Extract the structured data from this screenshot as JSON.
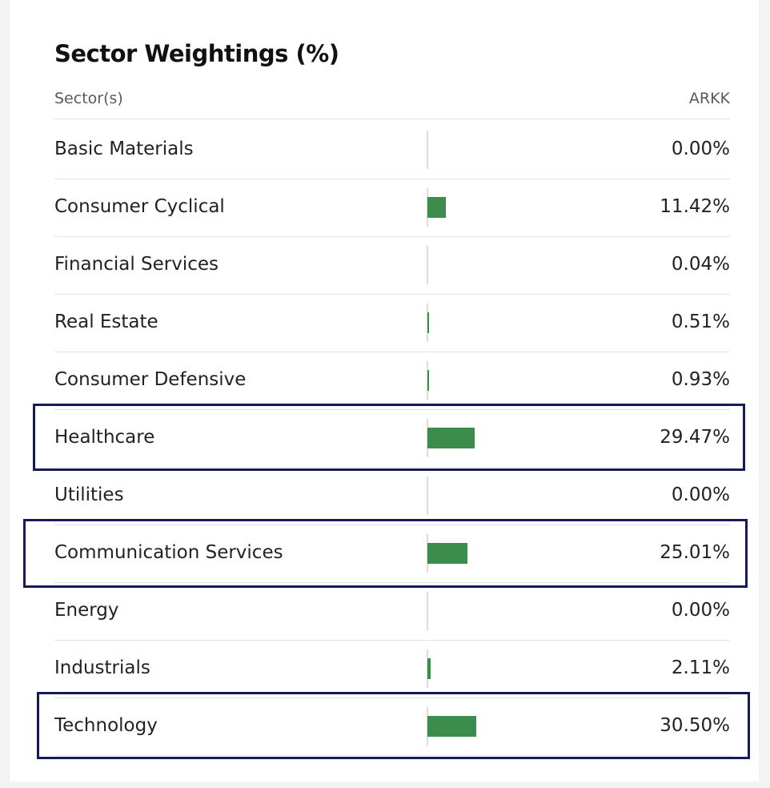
{
  "chart_data": {
    "type": "table",
    "title": "Sector Weightings (%)",
    "columns": [
      "Sector(s)",
      "ARKK"
    ],
    "categories": [
      "Basic Materials",
      "Consumer Cyclical",
      "Financial Services",
      "Real Estate",
      "Consumer Defensive",
      "Healthcare",
      "Utilities",
      "Communication Services",
      "Energy",
      "Industrials",
      "Technology"
    ],
    "values": [
      0.0,
      11.42,
      0.04,
      0.51,
      0.93,
      29.47,
      0.0,
      25.01,
      0.0,
      2.11,
      30.5
    ],
    "value_labels": [
      "0.00%",
      "11.42%",
      "0.04%",
      "0.51%",
      "0.93%",
      "29.47%",
      "0.00%",
      "25.01%",
      "0.00%",
      "2.11%",
      "30.50%"
    ],
    "highlighted": [
      "Healthcare",
      "Communication Services",
      "Technology"
    ],
    "bar_color": "#3c8c4e",
    "highlight_color": "#141a5a"
  }
}
